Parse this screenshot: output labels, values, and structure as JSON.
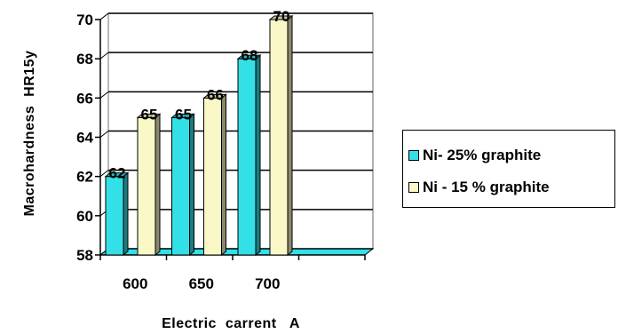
{
  "chart_data": {
    "type": "bar",
    "categories": [
      "600",
      "650",
      "700",
      ""
    ],
    "series": [
      {
        "name": "Ni- 25% graphite",
        "values": [
          62,
          65,
          68,
          null
        ],
        "color": "#33e0e8"
      },
      {
        "name": "Ni - 15 % graphite",
        "values": [
          65,
          66,
          70,
          null
        ],
        "color": "#fbf8c8"
      }
    ],
    "data_labels": [
      [
        "62",
        "65",
        "68",
        ""
      ],
      [
        "65",
        "66",
        "70",
        ""
      ]
    ],
    "ylim": [
      58,
      70
    ],
    "yticks": [
      58,
      60,
      62,
      64,
      66,
      68,
      70
    ],
    "xlabel": "Electric  carrent   A",
    "ylabel": "Macrohardness  HR15y",
    "grid": true,
    "style": "3d-clustered-column",
    "legend_position": "right"
  }
}
